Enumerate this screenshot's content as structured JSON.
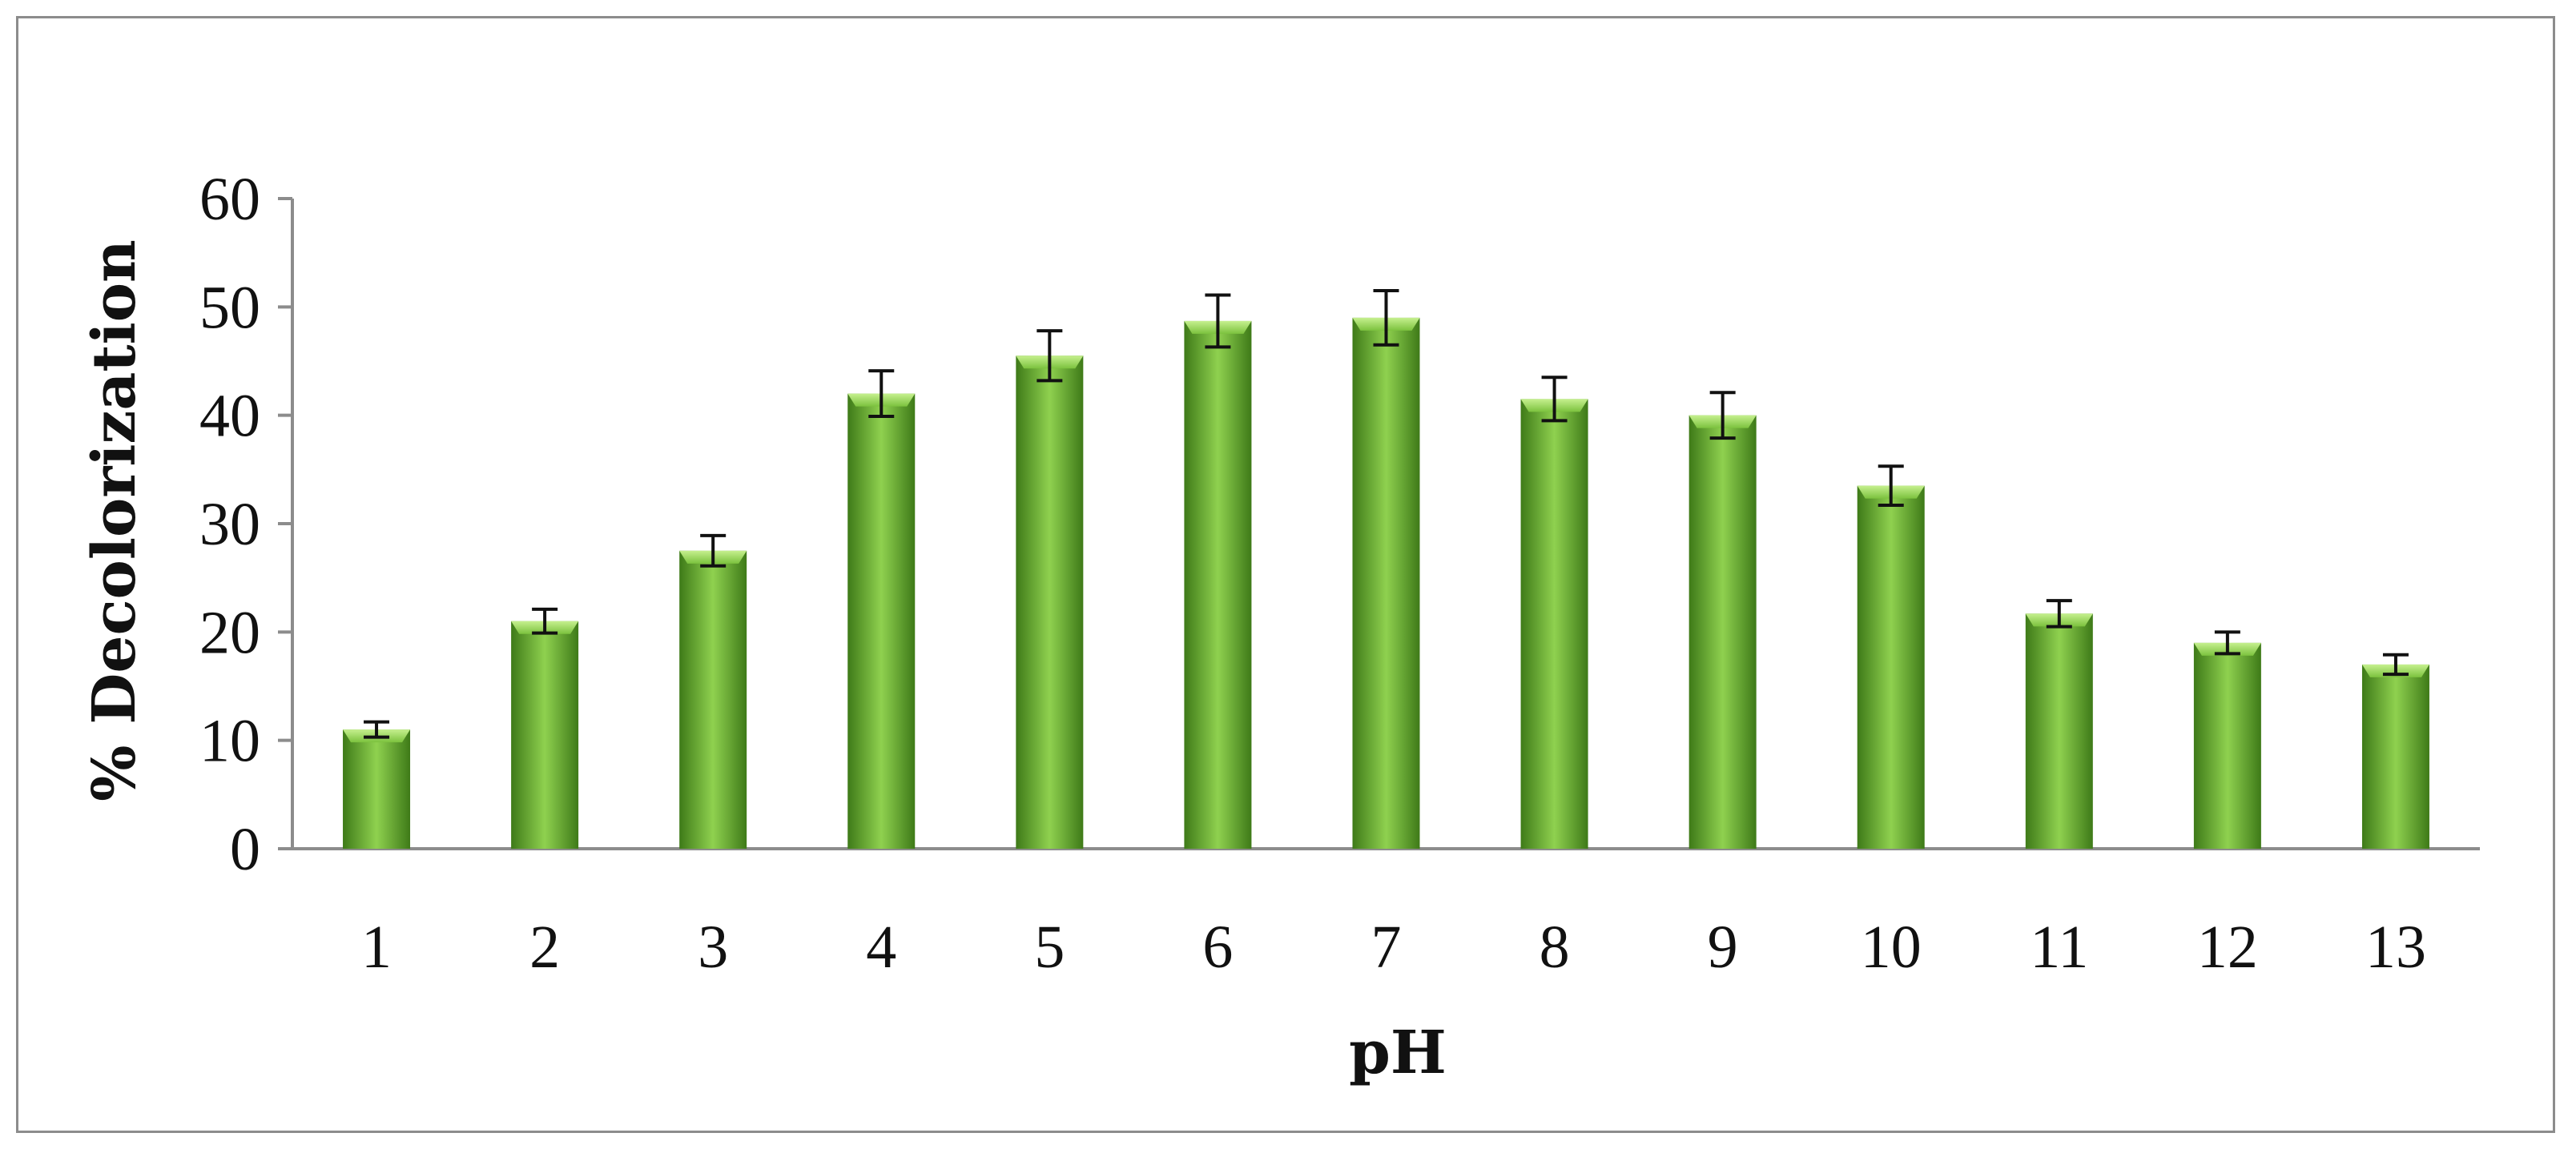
{
  "chart_data": {
    "type": "bar",
    "title": "",
    "xlabel": "pH",
    "ylabel": "% Decolorization",
    "ylim": [
      0,
      60
    ],
    "yticks": [
      0,
      10,
      20,
      30,
      40,
      50,
      60
    ],
    "categories": [
      "1",
      "2",
      "3",
      "4",
      "5",
      "6",
      "7",
      "8",
      "9",
      "10",
      "11",
      "12",
      "13"
    ],
    "values": [
      11,
      21,
      27.5,
      42,
      45.5,
      48.7,
      49,
      41.5,
      40,
      33.5,
      21.7,
      19,
      17
    ],
    "error": [
      0.7,
      1.1,
      1.4,
      2.1,
      2.3,
      2.4,
      2.5,
      2.0,
      2.1,
      1.8,
      1.2,
      1.0,
      0.9
    ],
    "grid": false,
    "legend": "none",
    "colors": {
      "bar_light": "#8fd14f",
      "bar_mid": "#5fa82a",
      "bar_dark": "#3e7a18",
      "axis": "#8c8c8c",
      "error_bar": "#111111"
    }
  }
}
